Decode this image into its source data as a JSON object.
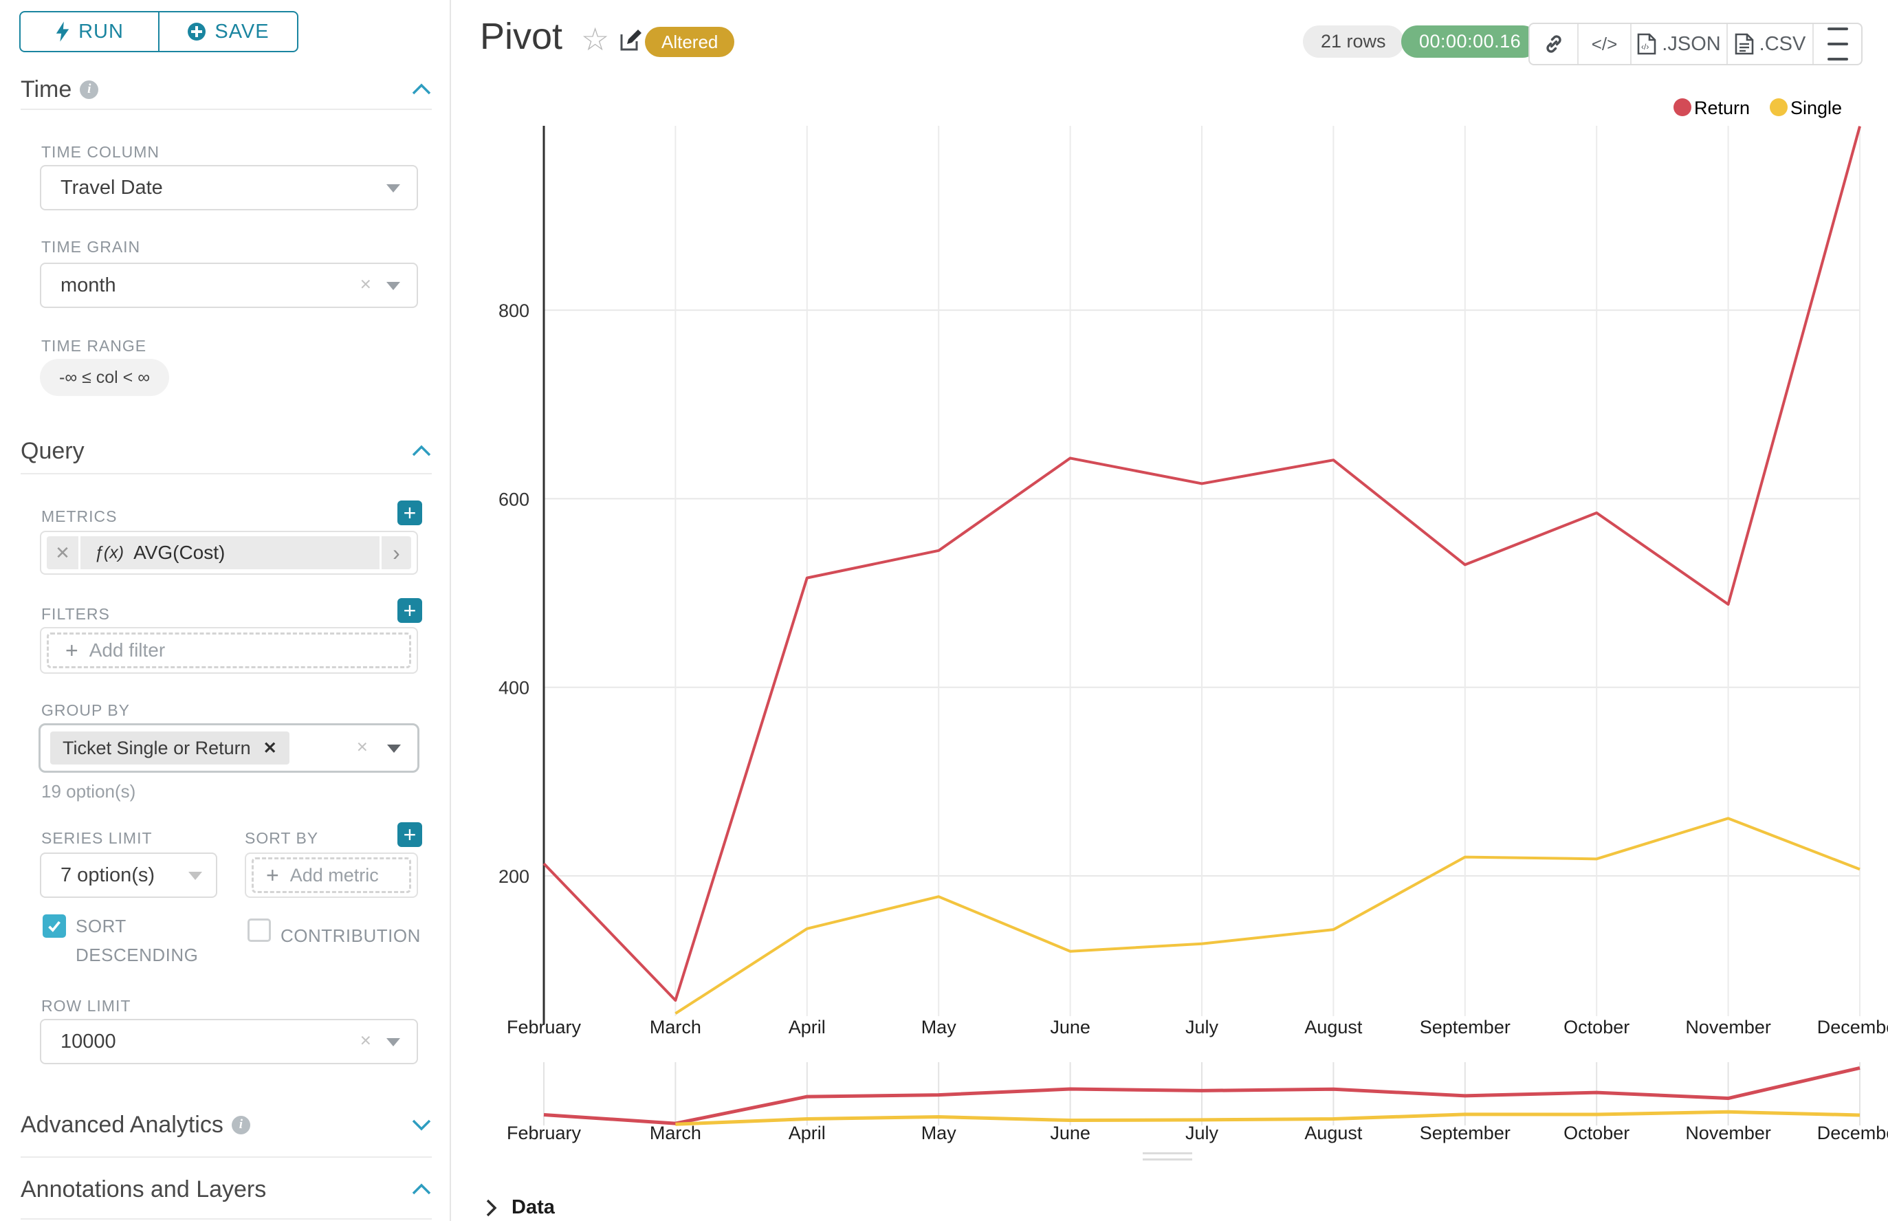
{
  "sidebar": {
    "run": "RUN",
    "save": "SAVE",
    "time": {
      "title": "Time",
      "column_label": "TIME COLUMN",
      "column_value": "Travel Date",
      "grain_label": "TIME GRAIN",
      "grain_value": "month",
      "range_label": "TIME RANGE",
      "range_value": "-∞ ≤ col < ∞"
    },
    "query": {
      "title": "Query",
      "metrics_label": "METRICS",
      "metric_fx": "ƒ(x)",
      "metric_value": "AVG(Cost)",
      "filters_label": "FILTERS",
      "add_filter": "Add filter",
      "group_by_label": "GROUP BY",
      "group_by_tag": "Ticket Single or Return",
      "options_hint": "19 option(s)",
      "series_limit_label": "SERIES LIMIT",
      "series_limit_value": "7 option(s)",
      "sort_by_label": "SORT BY",
      "add_metric": "Add metric",
      "sort_descending_label": "SORT DESCENDING",
      "sort_descending_checked": true,
      "contribution_label": "CONTRIBUTION",
      "contribution_checked": false,
      "row_limit_label": "ROW LIMIT",
      "row_limit_value": "10000"
    },
    "advanced_analytics_title": "Advanced Analytics",
    "annotations_title": "Annotations and Layers"
  },
  "header": {
    "title": "Pivot",
    "badge": "Altered",
    "rows": "21 rows",
    "timer": "00:00:00.16",
    "code_label": "</>",
    "json_label": ".JSON",
    "csv_label": ".CSV"
  },
  "chart_data": {
    "type": "line",
    "categories": [
      "February",
      "March",
      "April",
      "May",
      "June",
      "July",
      "August",
      "September",
      "October",
      "November",
      "December"
    ],
    "series": [
      {
        "name": "Return",
        "color": "#d34b56",
        "values": [
          213,
          68,
          516,
          545,
          643,
          616,
          641,
          530,
          585,
          488,
          995
        ]
      },
      {
        "name": "Single",
        "color": "#f3c43e",
        "values": [
          null,
          54,
          144,
          178,
          120,
          128,
          143,
          220,
          218,
          261,
          207
        ]
      }
    ],
    "yticks": [
      200,
      400,
      600,
      800
    ],
    "ylim": [
      50,
      1000
    ],
    "grid": true,
    "legend_position": "top-right",
    "has_range_selector": true,
    "range_selector_ylim": [
      0,
      1000
    ]
  },
  "footer": {
    "data_label": "Data"
  }
}
